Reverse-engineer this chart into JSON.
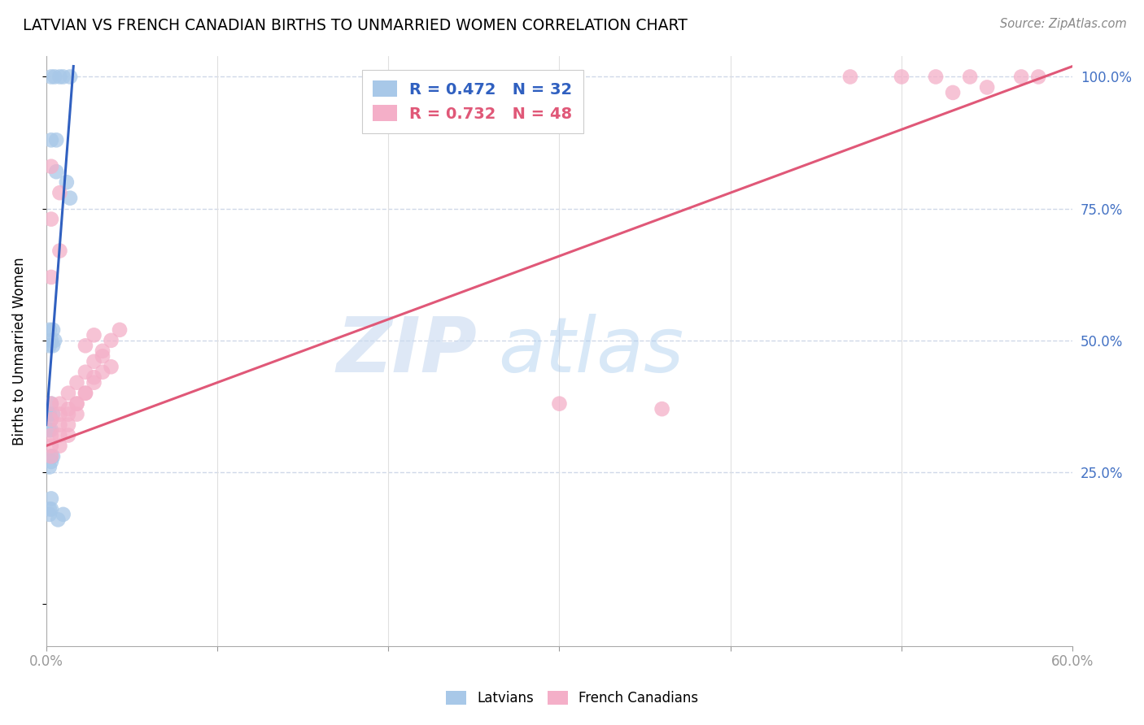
{
  "title": "LATVIAN VS FRENCH CANADIAN BIRTHS TO UNMARRIED WOMEN CORRELATION CHART",
  "source": "Source: ZipAtlas.com",
  "ylabel": "Births to Unmarried Women",
  "legend_latvian_r": "R = 0.472",
  "legend_latvian_n": "N = 32",
  "legend_french_r": "R = 0.732",
  "legend_french_n": "N = 48",
  "latvian_color": "#a8c8e8",
  "french_color": "#f4afc8",
  "latvian_line_color": "#3060c0",
  "french_line_color": "#e05878",
  "xmin": 0.0,
  "xmax": 0.6,
  "ymin": -0.08,
  "ymax": 1.04,
  "yticks": [
    0.0,
    0.25,
    0.5,
    0.75,
    1.0
  ],
  "ytick_labels": [
    "",
    "25.0%",
    "50.0%",
    "75.0%",
    "100.0%"
  ],
  "xtick_positions": [
    0.0,
    0.1,
    0.2,
    0.3,
    0.4,
    0.5,
    0.6
  ],
  "xtick_labels": [
    "0.0%",
    "",
    "",
    "",
    "",
    "",
    "60.0%"
  ],
  "watermark_zip": "ZIP",
  "watermark_atlas": "atlas",
  "latvian_x": [
    0.003,
    0.005,
    0.008,
    0.014,
    0.003,
    0.006,
    0.01,
    0.006,
    0.012,
    0.014,
    0.002,
    0.004,
    0.003,
    0.005,
    0.002,
    0.004,
    0.003,
    0.002,
    0.004,
    0.003,
    0.002,
    0.003,
    0.003,
    0.004,
    0.003,
    0.002,
    0.003,
    0.002,
    0.003,
    0.002,
    0.01,
    0.007
  ],
  "latvian_y": [
    1.0,
    1.0,
    1.0,
    1.0,
    0.88,
    0.88,
    1.0,
    0.82,
    0.8,
    0.77,
    0.52,
    0.52,
    0.5,
    0.5,
    0.49,
    0.49,
    0.38,
    0.36,
    0.36,
    0.35,
    0.33,
    0.33,
    0.28,
    0.28,
    0.27,
    0.26,
    0.2,
    0.18,
    0.18,
    0.17,
    0.17,
    0.16
  ],
  "french_x": [
    0.003,
    0.008,
    0.013,
    0.018,
    0.023,
    0.028,
    0.033,
    0.038,
    0.043,
    0.003,
    0.008,
    0.013,
    0.018,
    0.023,
    0.028,
    0.033,
    0.038,
    0.003,
    0.008,
    0.013,
    0.018,
    0.023,
    0.028,
    0.033,
    0.003,
    0.008,
    0.013,
    0.018,
    0.023,
    0.028,
    0.003,
    0.008,
    0.013,
    0.003,
    0.008,
    0.003,
    0.008,
    0.003,
    0.47,
    0.5,
    0.52,
    0.54,
    0.57,
    0.58,
    0.3,
    0.36,
    0.55,
    0.53
  ],
  "french_y": [
    0.38,
    0.38,
    0.4,
    0.42,
    0.44,
    0.46,
    0.48,
    0.5,
    0.52,
    0.35,
    0.36,
    0.37,
    0.38,
    0.4,
    0.42,
    0.44,
    0.45,
    0.32,
    0.34,
    0.36,
    0.38,
    0.4,
    0.43,
    0.47,
    0.3,
    0.32,
    0.34,
    0.36,
    0.49,
    0.51,
    0.28,
    0.3,
    0.32,
    0.62,
    0.67,
    0.73,
    0.78,
    0.83,
    1.0,
    1.0,
    1.0,
    1.0,
    1.0,
    1.0,
    0.38,
    0.37,
    0.98,
    0.97
  ],
  "lv_line_x": [
    0.0,
    0.016
  ],
  "lv_line_y": [
    0.34,
    1.02
  ],
  "fr_line_x": [
    0.0,
    0.6
  ],
  "fr_line_y": [
    0.3,
    1.02
  ]
}
